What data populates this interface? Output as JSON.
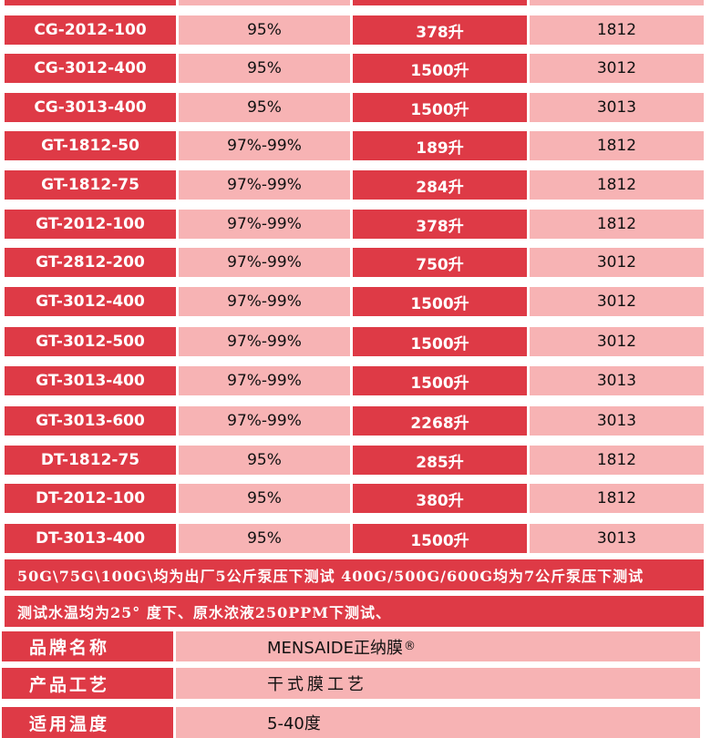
{
  "table": {
    "rows": [
      {
        "model": "CG-2012-100",
        "rejection": "95%",
        "flow": "378升",
        "size": "1812"
      },
      {
        "model": "CG-3012-400",
        "rejection": "95%",
        "flow": "1500升",
        "size": "3012"
      },
      {
        "model": "CG-3013-400",
        "rejection": "95%",
        "flow": "1500升",
        "size": "3013"
      },
      {
        "model": "GT-1812-50",
        "rejection": "97%-99%",
        "flow": "189升",
        "size": "1812"
      },
      {
        "model": "GT-1812-75",
        "rejection": "97%-99%",
        "flow": "284升",
        "size": "1812"
      },
      {
        "model": "GT-2012-100",
        "rejection": "97%-99%",
        "flow": "378升",
        "size": "1812"
      },
      {
        "model": "GT-2812-200",
        "rejection": "97%-99%",
        "flow": "750升",
        "size": "3012"
      },
      {
        "model": "GT-3012-400",
        "rejection": "97%-99%",
        "flow": "1500升",
        "size": "3012"
      },
      {
        "model": "GT-3012-500",
        "rejection": "97%-99%",
        "flow": "1500升",
        "size": "3012"
      },
      {
        "model": "GT-3013-400",
        "rejection": "97%-99%",
        "flow": "1500升",
        "size": "3013"
      },
      {
        "model": "GT-3013-600",
        "rejection": "97%-99%",
        "flow": "2268升",
        "size": "3013"
      },
      {
        "model": "DT-1812-75",
        "rejection": "95%",
        "flow": "285升",
        "size": "1812"
      },
      {
        "model": "DT-2012-100",
        "rejection": "95%",
        "flow": "380升",
        "size": "1812"
      },
      {
        "model": "DT-3013-400",
        "rejection": "95%",
        "flow": "1500升",
        "size": "3013"
      }
    ]
  },
  "notes": [
    "50G\\75G\\100G\\均为出厂5公斤泵压下测试 400G/500G/600G均为7公斤泵压下测试",
    "测试水温均为25° 度下、原水浓液250PPM下测试、"
  ],
  "specs": [
    {
      "label": "品牌名称",
      "value": "MENSAIDE正纳膜",
      "mark": "®"
    },
    {
      "label": "产品工艺",
      "value": "干式膜工艺",
      "mark": ""
    },
    {
      "label": "适用温度",
      "value": "5-40度",
      "mark": ""
    }
  ],
  "colors": {
    "dark_cell": "#de3a46",
    "light_cell": "#f7b3b4",
    "background": "#ffffff"
  }
}
